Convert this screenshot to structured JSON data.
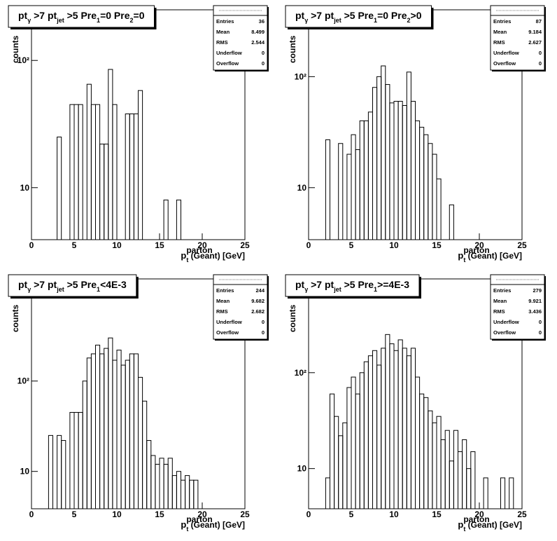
{
  "chart_data": [
    {
      "type": "histogram",
      "title": [
        "pt",
        "γ",
        " >7  pt",
        "jet",
        " >5 Pre",
        "1",
        "=0 Pre",
        "2",
        "=0"
      ],
      "xlabel": {
        "base": "p",
        "sub": "t",
        "sup": "parton",
        "rest": " (Geant) [GeV]"
      },
      "ylabel": "counts",
      "bins": [
        3,
        3.5,
        4,
        4.5,
        5,
        5.5,
        6,
        6.5,
        7,
        7.5,
        8,
        8.5,
        9,
        9.5,
        10,
        10.5,
        11,
        11.5,
        12,
        12.5,
        13,
        13.5,
        14,
        14.5,
        15,
        15.5,
        16,
        16.5,
        17,
        17.5
      ],
      "values": [
        25,
        0,
        0,
        45,
        45,
        45,
        0,
        65,
        45,
        45,
        22,
        22,
        85,
        45,
        0,
        0,
        38,
        38,
        38,
        58,
        0,
        0,
        0,
        0,
        0,
        8,
        0,
        0,
        8
      ],
      "xlim": [
        0,
        25
      ],
      "xticks": [
        0,
        5,
        10,
        15,
        20,
        25
      ],
      "ylim": [
        3.9,
        250
      ],
      "log_y": true,
      "yticks": [
        10,
        {
          "value": 100,
          "label": "10²"
        }
      ],
      "color": "#000000",
      "stats": [
        {
          "name": "Entries",
          "value": 36
        },
        {
          "name": "Mean",
          "value": 8.499
        },
        {
          "name": "RMS",
          "value": 2.544
        },
        {
          "name": "Underflow",
          "value": 0
        },
        {
          "name": "Overflow",
          "value": 0
        }
      ]
    },
    {
      "type": "histogram",
      "title": [
        "pt",
        "γ",
        " >7  pt",
        "jet",
        " >5 Pre",
        "1",
        "=0 Pre",
        "2",
        ">0"
      ],
      "xlabel": {
        "base": "p",
        "sub": "t",
        "sup": "parton",
        "rest": " (Geant) [GeV]"
      },
      "ylabel": "counts",
      "bins": [
        2,
        2.5,
        3,
        3.5,
        4,
        4.5,
        5,
        5.5,
        6,
        6.5,
        7,
        7.5,
        8,
        8.5,
        9,
        9.5,
        10,
        10.5,
        11,
        11.5,
        12,
        12.5,
        13,
        13.5,
        14,
        14.5,
        15,
        15.5,
        16,
        16.5,
        17
      ],
      "values": [
        27,
        0,
        0,
        25,
        0,
        20,
        30,
        22,
        40,
        40,
        48,
        80,
        100,
        125,
        85,
        58,
        60,
        60,
        55,
        110,
        60,
        40,
        35,
        30,
        25,
        20,
        12,
        0,
        0,
        7
      ],
      "xlim": [
        0,
        25
      ],
      "xticks": [
        0,
        5,
        10,
        15,
        20,
        25
      ],
      "ylim": [
        3.4,
        400
      ],
      "log_y": true,
      "yticks": [
        10,
        {
          "value": 100,
          "label": "10²"
        }
      ],
      "color": "#000000",
      "stats": [
        {
          "name": "Entries",
          "value": 87
        },
        {
          "name": "Mean",
          "value": 9.184
        },
        {
          "name": "RMS",
          "value": 2.627
        },
        {
          "name": "Underflow",
          "value": 0
        },
        {
          "name": "Overflow",
          "value": 0
        }
      ]
    },
    {
      "type": "histogram",
      "title": [
        "pt",
        "γ",
        " >7  pt",
        "jet",
        " >5 Pre",
        "1",
        "<4E-3"
      ],
      "xlabel": {
        "base": "p",
        "sub": "t",
        "sup": "parton",
        "rest": " (Geant) [GeV]"
      },
      "ylabel": "counts",
      "bins": [
        2,
        2.5,
        3,
        3.5,
        4,
        4.5,
        5,
        5.5,
        6,
        6.5,
        7,
        7.5,
        8,
        8.5,
        9,
        9.5,
        10,
        10.5,
        11,
        11.5,
        12,
        12.5,
        13,
        13.5,
        14,
        14.5,
        15,
        15.5,
        16,
        16.5,
        17,
        17.5,
        18,
        18.5,
        19,
        19.5
      ],
      "values": [
        25,
        0,
        25,
        22,
        0,
        45,
        45,
        45,
        100,
        180,
        200,
        250,
        200,
        230,
        300,
        170,
        220,
        150,
        170,
        200,
        200,
        110,
        60,
        22,
        15,
        12,
        14,
        12,
        14,
        9,
        10,
        8,
        9,
        8,
        8
      ],
      "xlim": [
        0,
        25
      ],
      "xticks": [
        0,
        5,
        10,
        15,
        20,
        25
      ],
      "ylim": [
        3.86,
        1350
      ],
      "log_y": true,
      "yticks": [
        10,
        {
          "value": 100,
          "label": "10²"
        }
      ],
      "color": "#000000",
      "stats": [
        {
          "name": "Entries",
          "value": 244
        },
        {
          "name": "Mean",
          "value": 9.682
        },
        {
          "name": "RMS",
          "value": 2.682
        },
        {
          "name": "Underflow",
          "value": 0
        },
        {
          "name": "Overflow",
          "value": 0
        }
      ]
    },
    {
      "type": "histogram",
      "title": [
        "pt",
        "γ",
        " >7  pt",
        "jet",
        " >5 Pre",
        "1",
        ">=4E-3"
      ],
      "xlabel": {
        "base": "p",
        "sub": "t",
        "sup": "parton",
        "rest": " (Geant) [GeV]"
      },
      "ylabel": "counts",
      "bins": [
        2,
        2.5,
        3,
        3.5,
        4,
        4.5,
        5,
        5.5,
        6,
        6.5,
        7,
        7.5,
        8,
        8.5,
        9,
        9.5,
        10,
        10.5,
        11,
        11.5,
        12,
        12.5,
        13,
        13.5,
        14,
        14.5,
        15,
        15.5,
        16,
        16.5,
        17,
        17.5,
        18,
        18.5,
        19,
        19.5,
        20,
        20.5,
        21,
        21.5,
        22,
        22.5,
        23,
        23.5,
        24
      ],
      "values": [
        8,
        60,
        35,
        22,
        30,
        70,
        90,
        60,
        100,
        130,
        150,
        170,
        120,
        180,
        250,
        200,
        170,
        220,
        180,
        150,
        180,
        90,
        60,
        55,
        40,
        30,
        35,
        20,
        25,
        12,
        25,
        15,
        20,
        10,
        15,
        0,
        0,
        8,
        0,
        0,
        0,
        8,
        0,
        8
      ],
      "xlim": [
        0,
        25
      ],
      "xticks": [
        0,
        5,
        10,
        15,
        20,
        25
      ],
      "ylim": [
        3.81,
        950
      ],
      "log_y": true,
      "yticks": [
        10,
        {
          "value": 100,
          "label": "10²"
        }
      ],
      "color": "#000000",
      "stats": [
        {
          "name": "Entries",
          "value": 279
        },
        {
          "name": "Mean",
          "value": 9.921
        },
        {
          "name": "RMS",
          "value": 3.436
        },
        {
          "name": "Underflow",
          "value": 0
        },
        {
          "name": "Overflow",
          "value": 0
        }
      ]
    }
  ]
}
